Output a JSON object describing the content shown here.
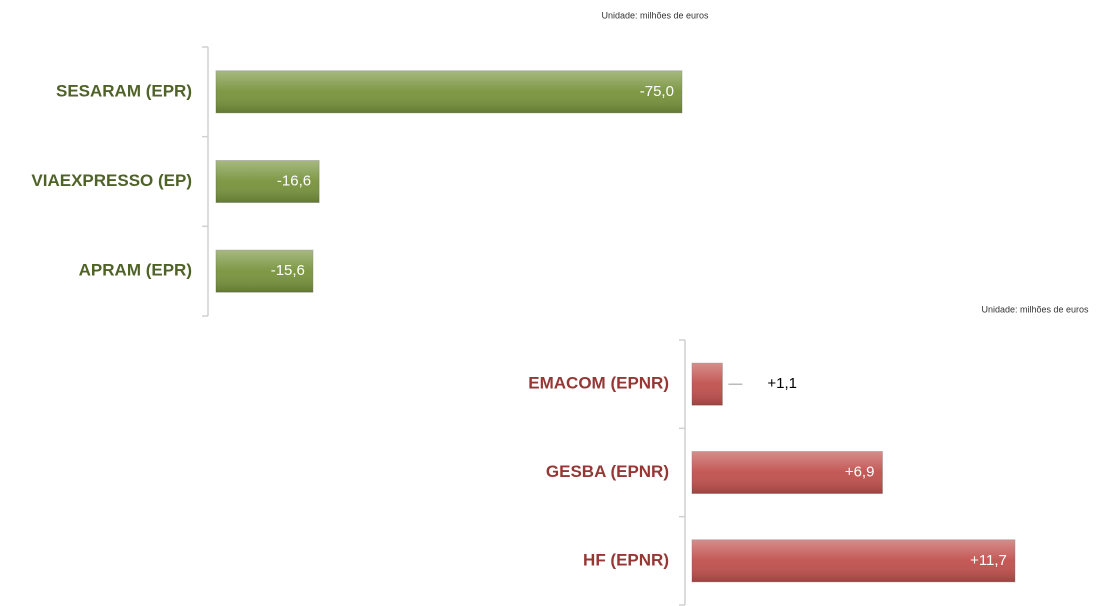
{
  "chart_data": [
    {
      "type": "bar",
      "subtitle": "Unidade:  milhões  de euros",
      "categories": [
        "SESARAM (EPR)",
        "VIAEXPRESSO (EP)",
        "APRAM (EPR)"
      ],
      "values": [
        -75.0,
        -16.6,
        -15.6
      ],
      "value_labels": [
        "-75,0",
        "-16,6",
        "-15,6"
      ],
      "color": "#77933c",
      "label_color": "#4f6228",
      "xlim": [
        0,
        -80
      ]
    },
    {
      "type": "bar",
      "subtitle": "Unidade:  milhões  de euros",
      "categories": [
        "EMACOM (EPNR)",
        "GESBA (EPNR)",
        "HF (EPNR)"
      ],
      "values": [
        1.1,
        6.9,
        11.7
      ],
      "value_labels": [
        "+1,1",
        "+6,9",
        "+11,7"
      ],
      "color": "#c0504d",
      "label_color": "#953735",
      "xlim": [
        0,
        12.5
      ]
    }
  ]
}
